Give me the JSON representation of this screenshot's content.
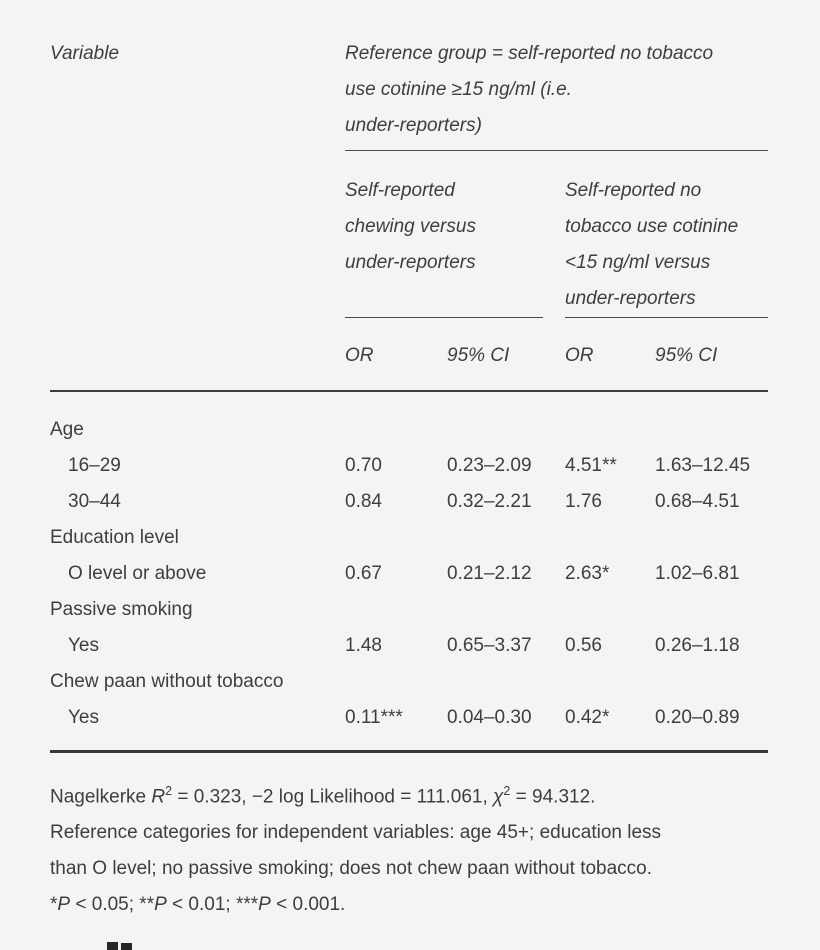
{
  "theme": {
    "background": "#f4f4f3",
    "text": "#3e3e3e",
    "rule": "#3e3e3e"
  },
  "table": {
    "variable_header": "Variable",
    "reference_header_lines": [
      "Reference group = self-reported no tobacco",
      "use cotinine ≥15 ng/ml (i.e.",
      "under-reporters)"
    ],
    "subgroup1_lines": [
      "Self-reported",
      "chewing versus",
      "under-reporters"
    ],
    "subgroup2_lines": [
      "Self-reported no",
      "tobacco use cotinine",
      "<15 ng/ml versus",
      "under-reporters"
    ],
    "stat_headers": {
      "or1": "OR",
      "ci1": "95% CI",
      "or2": "OR",
      "ci2": "95% CI"
    },
    "rows": [
      {
        "kind": "group",
        "label": "Age"
      },
      {
        "kind": "data",
        "label": "16–29",
        "or1": "0.70",
        "ci1": "0.23–2.09",
        "or2": "4.51**",
        "ci2": "1.63–12.45"
      },
      {
        "kind": "data",
        "label": "30–44",
        "or1": "0.84",
        "ci1": "0.32–2.21",
        "or2": "1.76",
        "ci2": "0.68–4.51"
      },
      {
        "kind": "group",
        "label": "Education level"
      },
      {
        "kind": "data",
        "label": "O level or above",
        "or1": "0.67",
        "ci1": "0.21–2.12",
        "or2": "2.63*",
        "ci2": "1.02–6.81"
      },
      {
        "kind": "group",
        "label": "Passive smoking"
      },
      {
        "kind": "data",
        "label": "Yes",
        "or1": "1.48",
        "ci1": "0.65–3.37",
        "or2": "0.56",
        "ci2": "0.26–1.18"
      },
      {
        "kind": "group",
        "label": "Chew paan without tobacco"
      },
      {
        "kind": "data",
        "label": "Yes",
        "or1": "0.11***",
        "ci1": "0.04–0.30",
        "or2": "0.42*",
        "ci2": "0.20–0.89"
      }
    ]
  },
  "footnotes": {
    "model_stats": {
      "t1": "Nagelkerke ",
      "r": "R",
      "sup1": "2",
      "t2": " = 0.323, −2 log Likelihood = 111.061, ",
      "chi": "χ",
      "sup2": "2",
      "t3": " = 94.312."
    },
    "reference_categories_lines": [
      "Reference categories for independent variables: age 45+; education less",
      "than O level; no passive smoking; does not chew paan without tobacco."
    ],
    "significance": {
      "s1": "*",
      "p1": "P",
      "v1": " < 0.05; ",
      "s2": "**",
      "p2": "P",
      "v2": " < 0.01; ",
      "s3": "***",
      "p3": "P",
      "v3": " < 0.001."
    }
  }
}
